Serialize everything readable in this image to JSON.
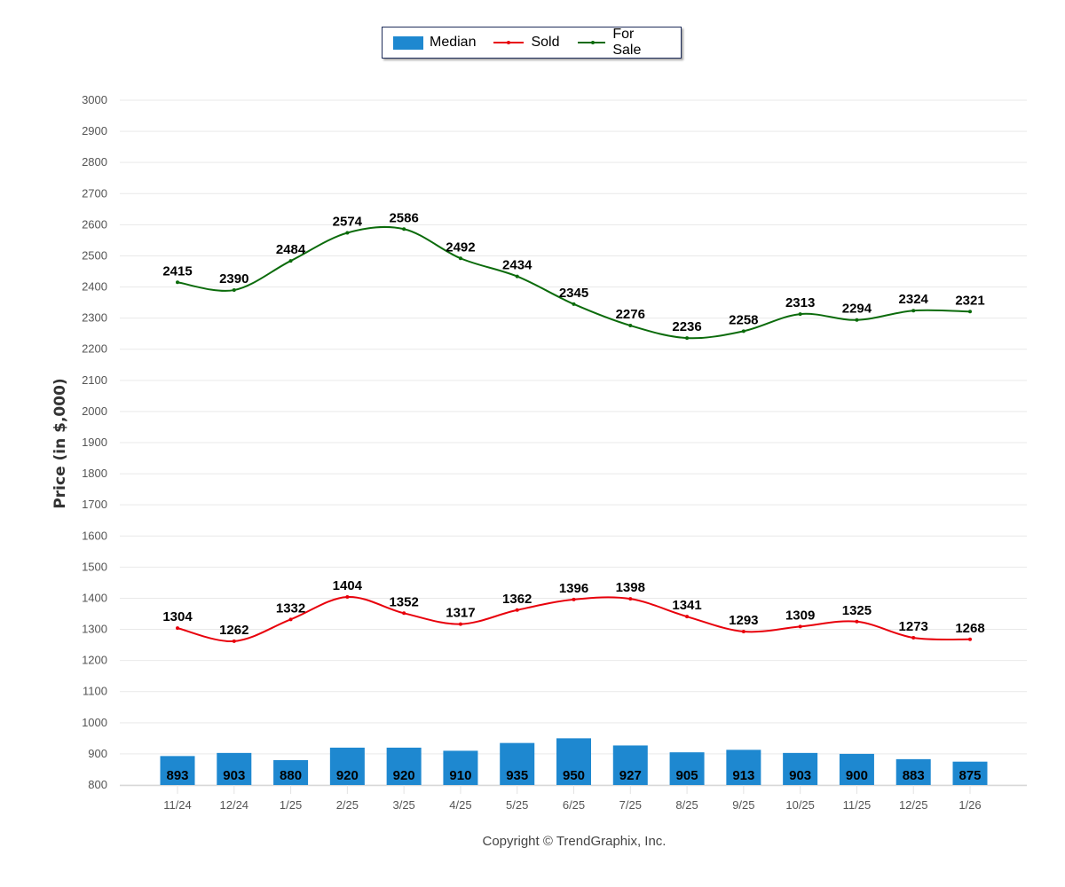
{
  "chart_data": {
    "type": "bar+line",
    "title": "",
    "xlabel": "",
    "ylabel": "Price (in $,000)",
    "ylim": [
      800,
      3000
    ],
    "ytick_step": 100,
    "grid": true,
    "legend_position": "top-center",
    "categories": [
      "11/24",
      "12/24",
      "1/25",
      "2/25",
      "3/25",
      "4/25",
      "5/25",
      "6/25",
      "7/25",
      "8/25",
      "9/25",
      "10/25",
      "11/25",
      "12/25",
      "1/26"
    ],
    "series": [
      {
        "name": "Median",
        "type": "bar",
        "color": "#1e88d0",
        "values": [
          893,
          903,
          880,
          920,
          920,
          910,
          935,
          950,
          927,
          905,
          913,
          903,
          900,
          883,
          875
        ]
      },
      {
        "name": "Sold",
        "type": "line",
        "color": "#e8000b",
        "values": [
          1304,
          1262,
          1332,
          1404,
          1352,
          1317,
          1362,
          1396,
          1398,
          1341,
          1293,
          1309,
          1325,
          1273,
          1268
        ]
      },
      {
        "name": "For Sale",
        "type": "line",
        "color": "#0b6b0b",
        "values": [
          2415,
          2390,
          2484,
          2574,
          2586,
          2492,
          2434,
          2345,
          2276,
          2236,
          2258,
          2313,
          2294,
          2324,
          2321
        ]
      }
    ]
  },
  "legend": {
    "items": [
      {
        "label": "Median",
        "color": "#1e88d0"
      },
      {
        "label": "Sold",
        "color": "#e8000b"
      },
      {
        "label": "For Sale",
        "color": "#0b6b0b"
      }
    ]
  },
  "footer": {
    "copyright": "Copyright © TrendGraphix, Inc."
  }
}
